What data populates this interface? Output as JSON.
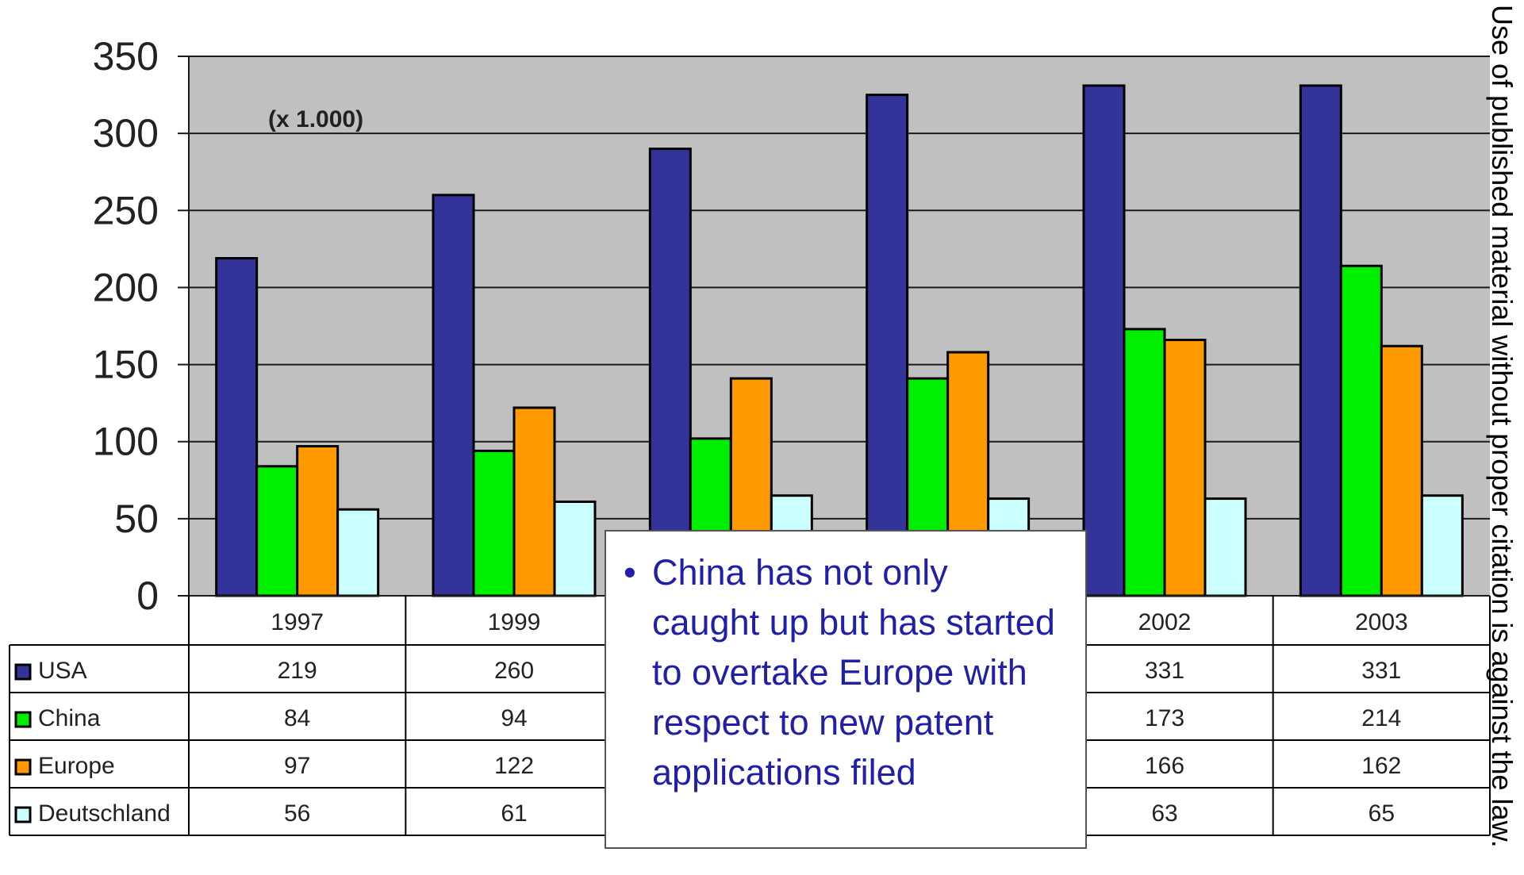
{
  "chart_data": {
    "type": "bar",
    "note": "(x 1.000)",
    "categories": [
      "1997",
      "1999",
      "",
      "",
      "2002",
      "2003"
    ],
    "series": [
      {
        "name": "USA",
        "color": "#333399",
        "values": [
          219,
          260,
          290,
          325,
          331,
          331
        ]
      },
      {
        "name": "China",
        "color": "#00ee00",
        "values": [
          84,
          94,
          102,
          141,
          173,
          214
        ]
      },
      {
        "name": "Europe",
        "color": "#ff9900",
        "values": [
          97,
          122,
          141,
          158,
          166,
          162
        ]
      },
      {
        "name": "Deutschland",
        "color": "#ccffff",
        "values": [
          56,
          61,
          65,
          63,
          63,
          65
        ]
      }
    ],
    "table_values": [
      [
        "219",
        "260",
        "",
        "",
        "331",
        "331"
      ],
      [
        "84",
        "94",
        "",
        "",
        "173",
        "214"
      ],
      [
        "97",
        "122",
        "",
        "",
        "166",
        "162"
      ],
      [
        "56",
        "61",
        "",
        "",
        "63",
        "65"
      ]
    ],
    "yticks": [
      0,
      50,
      100,
      150,
      200,
      250,
      300,
      350
    ],
    "ylim": [
      0,
      350
    ],
    "grid": true,
    "plot_background": "#c0c0c0",
    "legend": "data-table"
  },
  "callout": {
    "bullet": "•",
    "text": "China has not only caught up but has started to overtake Europe with respect to new patent applications filed"
  },
  "side_note": "Use of published material without proper citation is against the law."
}
